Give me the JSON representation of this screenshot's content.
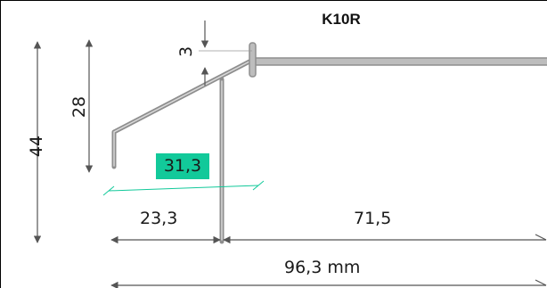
{
  "title": "K10R",
  "dimensions": {
    "total_height": "44",
    "lip_height": "28",
    "flange_gap": "3",
    "slope_length": "31,3",
    "left_width": "23,3",
    "right_width": "71,5",
    "total_width": "96,3 mm"
  },
  "colors": {
    "profile": "#9e9e9e",
    "dimension_line": "#555555",
    "slope_dimension": "#12c99a",
    "highlight": "#12c99a"
  }
}
